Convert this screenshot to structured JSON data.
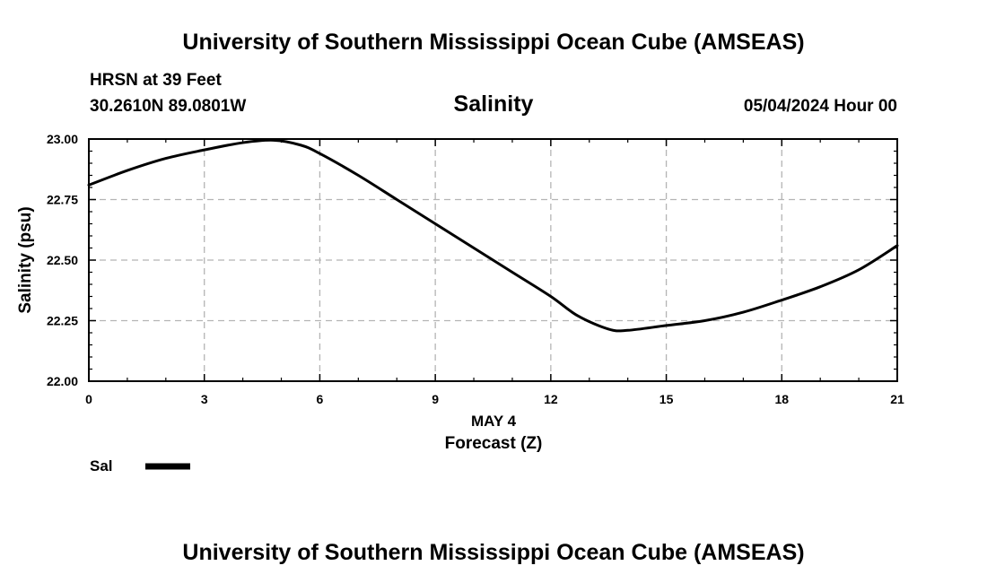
{
  "header": {
    "title": "University of Southern Mississippi Ocean Cube (AMSEAS)",
    "footer_title": "University of Southern Mississippi Ocean Cube (AMSEAS)",
    "station": "HRSN at 39 Feet",
    "coords": "30.2610N  89.0801W",
    "variable": "Salinity",
    "datetime": "05/04/2024 Hour 00"
  },
  "chart_data": {
    "type": "line",
    "title": "Salinity",
    "xlabel": "Forecast (Z)",
    "xlabel_date": "MAY 4",
    "ylabel": "Salinity (psu)",
    "xlim": [
      0,
      21
    ],
    "ylim": [
      22.0,
      23.0
    ],
    "x_ticks": [
      0,
      3,
      6,
      9,
      12,
      15,
      18,
      21
    ],
    "x_tick_labels": [
      "0",
      "3",
      "6",
      "9",
      "12",
      "15",
      "18",
      "21"
    ],
    "y_ticks": [
      22.0,
      22.25,
      22.5,
      22.75,
      23.0
    ],
    "y_tick_labels": [
      "22.00",
      "22.25",
      "22.50",
      "22.75",
      "23.00"
    ],
    "grid": true,
    "legend": "bottom-left",
    "series": [
      {
        "name": "Sal",
        "color": "#000000",
        "x": [
          0,
          1,
          2,
          3,
          4,
          4.8,
          5.5,
          6,
          7,
          8,
          9,
          10,
          11,
          12,
          12.7,
          13.5,
          14,
          15,
          16,
          17,
          18,
          19,
          20,
          21
        ],
        "values": [
          22.81,
          22.87,
          22.92,
          22.955,
          22.985,
          22.995,
          22.975,
          22.94,
          22.85,
          22.75,
          22.65,
          22.55,
          22.45,
          22.35,
          22.27,
          22.215,
          22.21,
          22.23,
          22.25,
          22.285,
          22.335,
          22.39,
          22.46,
          22.56
        ]
      }
    ]
  }
}
